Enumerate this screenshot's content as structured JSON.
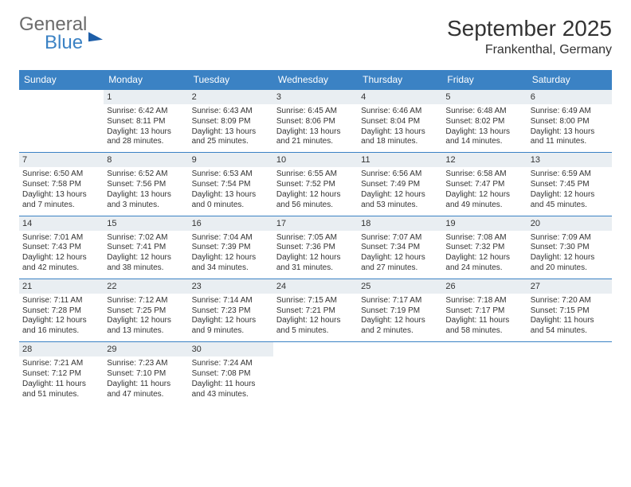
{
  "brand": {
    "general": "General",
    "blue": "Blue"
  },
  "title": "September 2025",
  "location": "Frankenthal, Germany",
  "colors": {
    "header_bg": "#3b82c4",
    "daynum_bg": "#e9eef2",
    "rule": "#3b82c4",
    "text": "#333333",
    "logo_gray": "#6b6b6b",
    "logo_blue": "#3b82c4",
    "background": "#ffffff"
  },
  "typography": {
    "title_fontsize": 28,
    "location_fontsize": 16,
    "dayhead_fontsize": 12,
    "daynum_fontsize": 11,
    "cell_fontsize": 10
  },
  "weekdays": [
    "Sunday",
    "Monday",
    "Tuesday",
    "Wednesday",
    "Thursday",
    "Friday",
    "Saturday"
  ],
  "weeks": [
    [
      null,
      {
        "n": "1",
        "sr": "Sunrise: 6:42 AM",
        "ss": "Sunset: 8:11 PM",
        "d1": "Daylight: 13 hours",
        "d2": "and 28 minutes."
      },
      {
        "n": "2",
        "sr": "Sunrise: 6:43 AM",
        "ss": "Sunset: 8:09 PM",
        "d1": "Daylight: 13 hours",
        "d2": "and 25 minutes."
      },
      {
        "n": "3",
        "sr": "Sunrise: 6:45 AM",
        "ss": "Sunset: 8:06 PM",
        "d1": "Daylight: 13 hours",
        "d2": "and 21 minutes."
      },
      {
        "n": "4",
        "sr": "Sunrise: 6:46 AM",
        "ss": "Sunset: 8:04 PM",
        "d1": "Daylight: 13 hours",
        "d2": "and 18 minutes."
      },
      {
        "n": "5",
        "sr": "Sunrise: 6:48 AM",
        "ss": "Sunset: 8:02 PM",
        "d1": "Daylight: 13 hours",
        "d2": "and 14 minutes."
      },
      {
        "n": "6",
        "sr": "Sunrise: 6:49 AM",
        "ss": "Sunset: 8:00 PM",
        "d1": "Daylight: 13 hours",
        "d2": "and 11 minutes."
      }
    ],
    [
      {
        "n": "7",
        "sr": "Sunrise: 6:50 AM",
        "ss": "Sunset: 7:58 PM",
        "d1": "Daylight: 13 hours",
        "d2": "and 7 minutes."
      },
      {
        "n": "8",
        "sr": "Sunrise: 6:52 AM",
        "ss": "Sunset: 7:56 PM",
        "d1": "Daylight: 13 hours",
        "d2": "and 3 minutes."
      },
      {
        "n": "9",
        "sr": "Sunrise: 6:53 AM",
        "ss": "Sunset: 7:54 PM",
        "d1": "Daylight: 13 hours",
        "d2": "and 0 minutes."
      },
      {
        "n": "10",
        "sr": "Sunrise: 6:55 AM",
        "ss": "Sunset: 7:52 PM",
        "d1": "Daylight: 12 hours",
        "d2": "and 56 minutes."
      },
      {
        "n": "11",
        "sr": "Sunrise: 6:56 AM",
        "ss": "Sunset: 7:49 PM",
        "d1": "Daylight: 12 hours",
        "d2": "and 53 minutes."
      },
      {
        "n": "12",
        "sr": "Sunrise: 6:58 AM",
        "ss": "Sunset: 7:47 PM",
        "d1": "Daylight: 12 hours",
        "d2": "and 49 minutes."
      },
      {
        "n": "13",
        "sr": "Sunrise: 6:59 AM",
        "ss": "Sunset: 7:45 PM",
        "d1": "Daylight: 12 hours",
        "d2": "and 45 minutes."
      }
    ],
    [
      {
        "n": "14",
        "sr": "Sunrise: 7:01 AM",
        "ss": "Sunset: 7:43 PM",
        "d1": "Daylight: 12 hours",
        "d2": "and 42 minutes."
      },
      {
        "n": "15",
        "sr": "Sunrise: 7:02 AM",
        "ss": "Sunset: 7:41 PM",
        "d1": "Daylight: 12 hours",
        "d2": "and 38 minutes."
      },
      {
        "n": "16",
        "sr": "Sunrise: 7:04 AM",
        "ss": "Sunset: 7:39 PM",
        "d1": "Daylight: 12 hours",
        "d2": "and 34 minutes."
      },
      {
        "n": "17",
        "sr": "Sunrise: 7:05 AM",
        "ss": "Sunset: 7:36 PM",
        "d1": "Daylight: 12 hours",
        "d2": "and 31 minutes."
      },
      {
        "n": "18",
        "sr": "Sunrise: 7:07 AM",
        "ss": "Sunset: 7:34 PM",
        "d1": "Daylight: 12 hours",
        "d2": "and 27 minutes."
      },
      {
        "n": "19",
        "sr": "Sunrise: 7:08 AM",
        "ss": "Sunset: 7:32 PM",
        "d1": "Daylight: 12 hours",
        "d2": "and 24 minutes."
      },
      {
        "n": "20",
        "sr": "Sunrise: 7:09 AM",
        "ss": "Sunset: 7:30 PM",
        "d1": "Daylight: 12 hours",
        "d2": "and 20 minutes."
      }
    ],
    [
      {
        "n": "21",
        "sr": "Sunrise: 7:11 AM",
        "ss": "Sunset: 7:28 PM",
        "d1": "Daylight: 12 hours",
        "d2": "and 16 minutes."
      },
      {
        "n": "22",
        "sr": "Sunrise: 7:12 AM",
        "ss": "Sunset: 7:25 PM",
        "d1": "Daylight: 12 hours",
        "d2": "and 13 minutes."
      },
      {
        "n": "23",
        "sr": "Sunrise: 7:14 AM",
        "ss": "Sunset: 7:23 PM",
        "d1": "Daylight: 12 hours",
        "d2": "and 9 minutes."
      },
      {
        "n": "24",
        "sr": "Sunrise: 7:15 AM",
        "ss": "Sunset: 7:21 PM",
        "d1": "Daylight: 12 hours",
        "d2": "and 5 minutes."
      },
      {
        "n": "25",
        "sr": "Sunrise: 7:17 AM",
        "ss": "Sunset: 7:19 PM",
        "d1": "Daylight: 12 hours",
        "d2": "and 2 minutes."
      },
      {
        "n": "26",
        "sr": "Sunrise: 7:18 AM",
        "ss": "Sunset: 7:17 PM",
        "d1": "Daylight: 11 hours",
        "d2": "and 58 minutes."
      },
      {
        "n": "27",
        "sr": "Sunrise: 7:20 AM",
        "ss": "Sunset: 7:15 PM",
        "d1": "Daylight: 11 hours",
        "d2": "and 54 minutes."
      }
    ],
    [
      {
        "n": "28",
        "sr": "Sunrise: 7:21 AM",
        "ss": "Sunset: 7:12 PM",
        "d1": "Daylight: 11 hours",
        "d2": "and 51 minutes."
      },
      {
        "n": "29",
        "sr": "Sunrise: 7:23 AM",
        "ss": "Sunset: 7:10 PM",
        "d1": "Daylight: 11 hours",
        "d2": "and 47 minutes."
      },
      {
        "n": "30",
        "sr": "Sunrise: 7:24 AM",
        "ss": "Sunset: 7:08 PM",
        "d1": "Daylight: 11 hours",
        "d2": "and 43 minutes."
      },
      null,
      null,
      null,
      null
    ]
  ]
}
